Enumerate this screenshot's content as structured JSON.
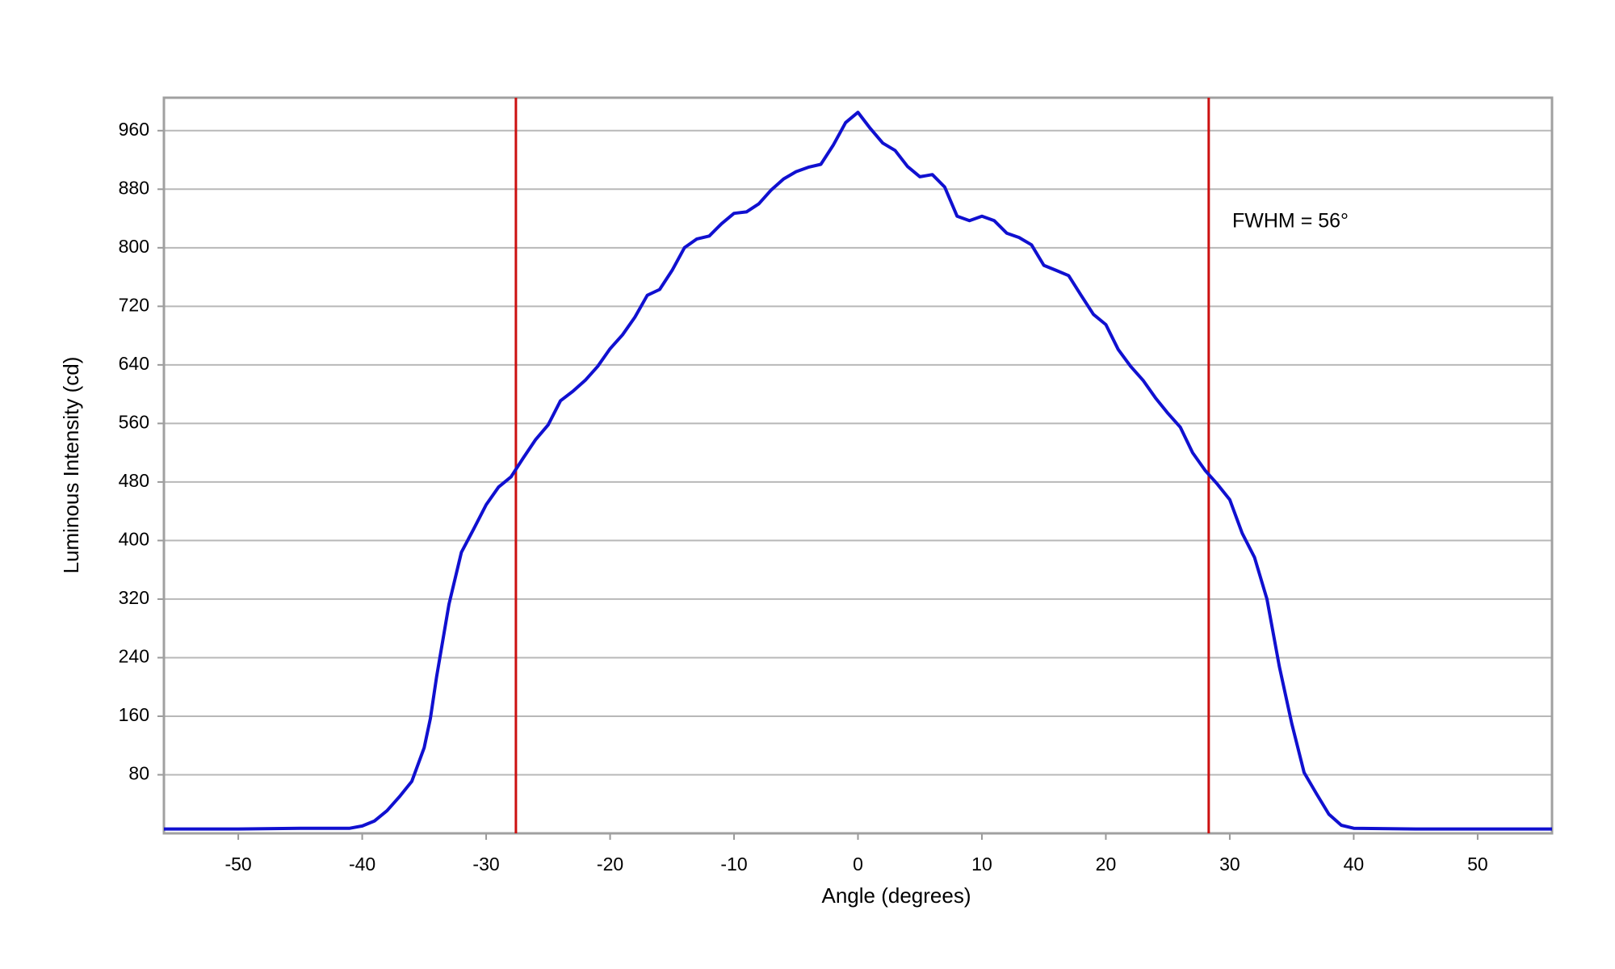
{
  "chart_data": {
    "type": "line",
    "x_label": "Angle (degrees)",
    "y_label": "Luminous Intensity (cd)",
    "x": [
      -56,
      -50,
      -45,
      -41,
      -40,
      -39,
      -38,
      -37,
      -36,
      -35,
      -34.5,
      -34,
      -33,
      -32,
      -31,
      -30,
      -29,
      -28,
      -27,
      -26,
      -25,
      -24,
      -23,
      -22,
      -21,
      -20,
      -19,
      -18,
      -17,
      -16,
      -15,
      -14,
      -13,
      -12,
      -11,
      -10,
      -9,
      -8,
      -7,
      -6,
      -5,
      -4,
      -3,
      -2,
      -1,
      0,
      1,
      2,
      3,
      4,
      5,
      6,
      7,
      8,
      9,
      10,
      11,
      12,
      13,
      14,
      15,
      16,
      17,
      18,
      19,
      20,
      21,
      22,
      23,
      24,
      25,
      26,
      27,
      28,
      29,
      30,
      31,
      32,
      33,
      34,
      35,
      36,
      37,
      38,
      39,
      40,
      45,
      50,
      56
    ],
    "series": [
      {
        "name": "Luminous Intensity",
        "color": "#1010d0",
        "values": [
          6,
          6,
          7,
          7,
          10,
          17,
          31,
          50,
          71,
          117,
          157,
          214,
          313,
          384,
          416,
          449,
          473,
          487,
          513,
          538,
          558,
          591,
          604,
          619,
          638,
          662,
          681,
          705,
          735,
          743,
          769,
          800,
          812,
          816,
          833,
          847,
          849,
          860,
          879,
          894,
          904,
          910,
          914,
          940,
          971,
          985,
          963,
          943,
          933,
          911,
          897,
          900,
          883,
          843,
          837,
          843,
          837,
          820,
          814,
          804,
          776,
          769,
          762,
          735,
          709,
          695,
          661,
          638,
          619,
          595,
          574,
          555,
          520,
          496,
          477,
          456,
          410,
          377,
          320,
          228,
          150,
          83,
          54,
          26,
          11,
          7,
          6,
          6,
          6
        ]
      }
    ],
    "xlim": [
      -56,
      56
    ],
    "xticks": [
      -50,
      -40,
      -30,
      -20,
      -10,
      0,
      10,
      20,
      30,
      40,
      50
    ],
    "ylim": [
      0,
      1005
    ],
    "yticks": [
      80,
      160,
      240,
      320,
      400,
      480,
      560,
      640,
      720,
      800,
      880,
      960
    ],
    "grid": true,
    "vlines": {
      "color": "#cc1010",
      "values": [
        -27.6,
        28.3
      ]
    },
    "annotation": "FWHM = 56°"
  }
}
